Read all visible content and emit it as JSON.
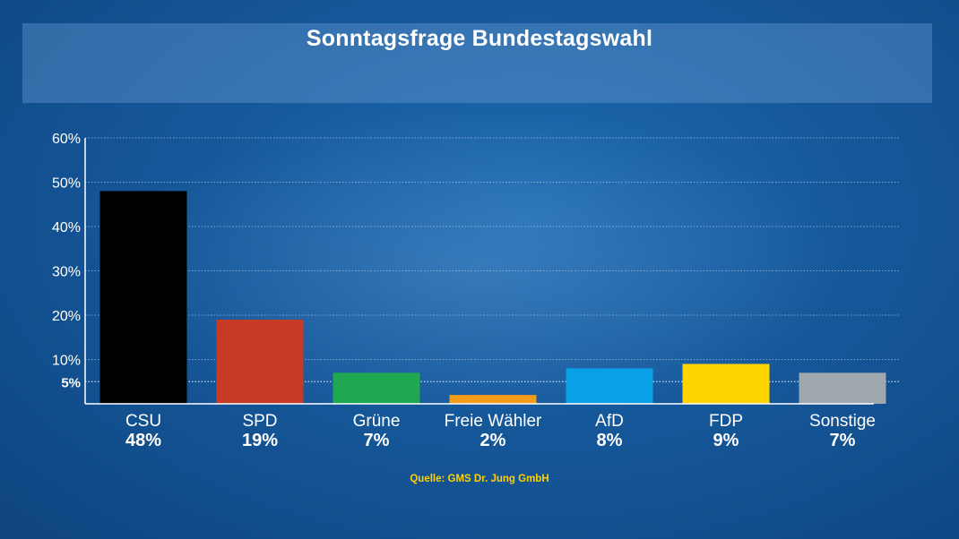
{
  "title": "Sonntagsfrage Bundestagswahl",
  "source": "Quelle: GMS Dr. Jung GmbH",
  "colors": {
    "background": "#15589a",
    "grid": "#cfe0f5",
    "axis": "#ffffff",
    "source_text": "#ffd200"
  },
  "chart_data": {
    "type": "bar",
    "categories": [
      "CSU",
      "SPD",
      "Grüne",
      "Freie Wähler",
      "AfD",
      "FDP",
      "Sonstige"
    ],
    "values": [
      48,
      19,
      7,
      2,
      8,
      9,
      7
    ],
    "value_labels": [
      "48%",
      "19%",
      "7%",
      "2%",
      "8%",
      "9%",
      "7%"
    ],
    "bar_colors": [
      "#000000",
      "#c63a26",
      "#20a752",
      "#f59b1b",
      "#0aa0e6",
      "#ffd500",
      "#9ea8ad"
    ],
    "ylim": [
      0,
      60
    ],
    "yticks": [
      {
        "value": 5,
        "label": "5%",
        "bold": true
      },
      {
        "value": 10,
        "label": "10%"
      },
      {
        "value": 20,
        "label": "20%"
      },
      {
        "value": 30,
        "label": "30%"
      },
      {
        "value": 40,
        "label": "40%"
      },
      {
        "value": 50,
        "label": "50%"
      },
      {
        "value": 60,
        "label": "60%"
      }
    ],
    "grid": true,
    "xlabel": "",
    "ylabel": ""
  }
}
